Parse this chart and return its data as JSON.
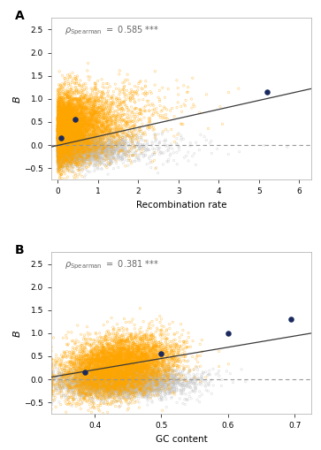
{
  "panel_A": {
    "title_label": "A",
    "xlabel": "Recombination rate",
    "ylabel": "B",
    "xlim": [
      -0.15,
      6.3
    ],
    "ylim": [
      -0.75,
      2.75
    ],
    "xticks": [
      0,
      1,
      2,
      3,
      4,
      5,
      6
    ],
    "yticks": [
      -0.5,
      0.0,
      0.5,
      1.0,
      1.5,
      2.0,
      2.5
    ],
    "rho_val": "0.585",
    "stars": "***",
    "trendline_x": [
      -0.15,
      6.3
    ],
    "trendline_y": [
      -0.04,
      1.22
    ],
    "dashed_y": 0.0,
    "dark_points_A": [
      [
        0.1,
        0.15
      ],
      [
        0.45,
        0.55
      ],
      [
        5.2,
        1.15
      ]
    ],
    "n_orange": 6000,
    "n_gray": 4000,
    "orange_color": "#FFA500",
    "gray_color": "#BEBEBE",
    "dark_color": "#1a2a5e",
    "bg_color": "#FFFFFF"
  },
  "panel_B": {
    "title_label": "B",
    "xlabel": "GC content",
    "ylabel": "B",
    "xlim": [
      0.335,
      0.725
    ],
    "ylim": [
      -0.75,
      2.75
    ],
    "xticks": [
      0.4,
      0.5,
      0.6,
      0.7
    ],
    "yticks": [
      -0.5,
      0.0,
      0.5,
      1.0,
      1.5,
      2.0,
      2.5
    ],
    "rho_val": "0.381",
    "stars": "***",
    "trendline_x": [
      0.335,
      0.725
    ],
    "trendline_y": [
      0.05,
      1.0
    ],
    "dashed_y": 0.0,
    "dark_points_B": [
      [
        0.385,
        0.15
      ],
      [
        0.5,
        0.55
      ],
      [
        0.6,
        1.0
      ],
      [
        0.695,
        1.3
      ]
    ],
    "n_orange": 6000,
    "n_gray": 4000,
    "orange_color": "#FFA500",
    "gray_color": "#BEBEBE",
    "dark_color": "#1a2a5e",
    "bg_color": "#FFFFFF"
  }
}
